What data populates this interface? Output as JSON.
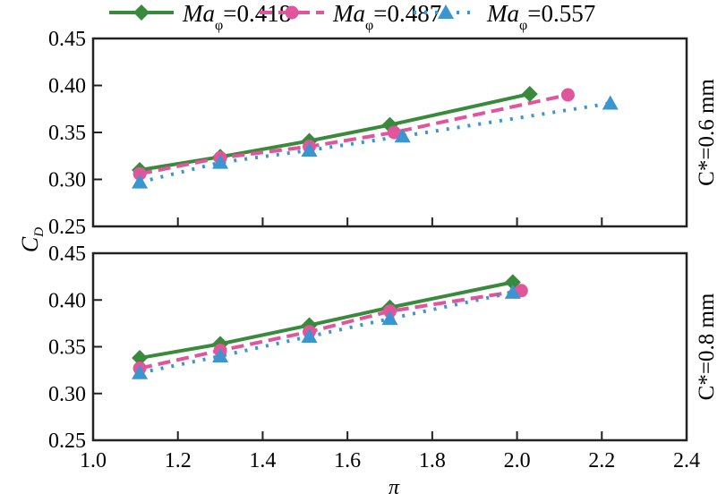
{
  "legend": [
    {
      "prefix": "Ma",
      "sub": "φ",
      "value": "=0.418"
    },
    {
      "prefix": "Ma",
      "sub": "φ",
      "value": "=0.487"
    },
    {
      "prefix": "Ma",
      "sub": "φ",
      "value": "=0.557"
    }
  ],
  "colors": {
    "s1": "#3a8a3e",
    "s2": "#e0559b",
    "s3": "#3a95d0"
  },
  "chart_data": [
    {
      "type": "line",
      "panel_label": "C*=0.6 mm",
      "xlabel": "π",
      "ylabel": "C_D",
      "xlim": [
        1.0,
        2.4
      ],
      "ylim": [
        0.25,
        0.45
      ],
      "xticks": [
        "1.0",
        "1.2",
        "1.4",
        "1.6",
        "1.8",
        "2.0",
        "2.2",
        "2.4"
      ],
      "yticks": [
        "0.25",
        "0.30",
        "0.35",
        "0.40",
        "0.45"
      ],
      "series": [
        {
          "name": "Maφ=0.418",
          "x": [
            1.11,
            1.3,
            1.51,
            1.7,
            2.03
          ],
          "y": [
            0.31,
            0.324,
            0.341,
            0.358,
            0.391
          ]
        },
        {
          "name": "Maφ=0.487",
          "x": [
            1.11,
            1.3,
            1.51,
            1.71,
            2.12
          ],
          "y": [
            0.306,
            0.323,
            0.335,
            0.35,
            0.39
          ]
        },
        {
          "name": "Maφ=0.557",
          "x": [
            1.11,
            1.3,
            1.51,
            1.73,
            2.22
          ],
          "y": [
            0.297,
            0.318,
            0.331,
            0.346,
            0.381
          ]
        }
      ]
    },
    {
      "type": "line",
      "panel_label": "C*=0.8 mm",
      "xlabel": "π",
      "ylabel": "C_D",
      "xlim": [
        1.0,
        2.4
      ],
      "ylim": [
        0.25,
        0.45
      ],
      "xticks": [
        "1.0",
        "1.2",
        "1.4",
        "1.6",
        "1.8",
        "2.0",
        "2.2",
        "2.4"
      ],
      "yticks": [
        "0.25",
        "0.30",
        "0.35",
        "0.40",
        "0.45"
      ],
      "series": [
        {
          "name": "Maφ=0.418",
          "x": [
            1.11,
            1.3,
            1.51,
            1.7,
            1.99
          ],
          "y": [
            0.338,
            0.353,
            0.373,
            0.392,
            0.419
          ]
        },
        {
          "name": "Maφ=0.487",
          "x": [
            1.11,
            1.3,
            1.51,
            1.7,
            2.01
          ],
          "y": [
            0.327,
            0.346,
            0.366,
            0.388,
            0.41
          ]
        },
        {
          "name": "Maφ=0.557",
          "x": [
            1.11,
            1.3,
            1.51,
            1.7,
            1.99
          ],
          "y": [
            0.322,
            0.34,
            0.361,
            0.38,
            0.408
          ]
        }
      ]
    }
  ],
  "axis": {
    "xlabel": "π",
    "ylabel_main": "C",
    "ylabel_sub": "D"
  }
}
